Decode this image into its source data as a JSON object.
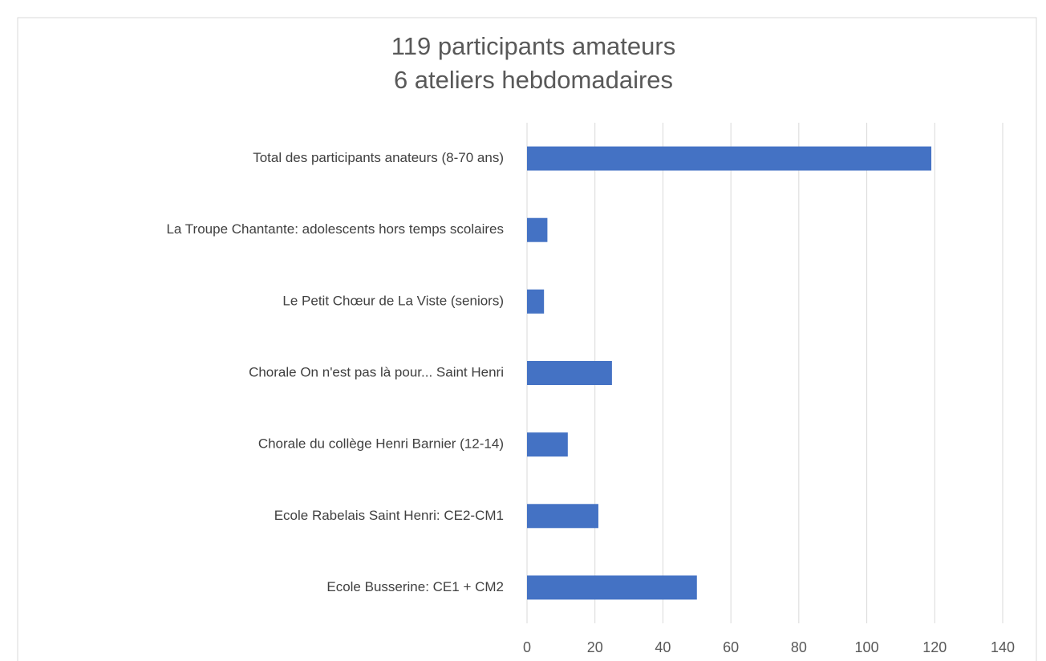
{
  "chart_data": {
    "type": "bar",
    "orientation": "horizontal",
    "title": "119 participants amateurs",
    "subtitle": "6 ateliers hebdomadaires",
    "categories": [
      "Total des participants anateurs (8-70 ans)",
      "La Troupe Chantante: adolescents hors temps scolaires",
      "Le Petit Chœur de La Viste (seniors)",
      "Chorale On n'est pas là pour... Saint Henri",
      "Chorale du collège Henri Barnier (12-14)",
      "Ecole Rabelais Saint Henri: CE2-CM1",
      "Ecole Busserine: CE1 + CM2"
    ],
    "values": [
      119,
      6,
      5,
      25,
      12,
      21,
      50
    ],
    "color": "#4472c4",
    "xlim": [
      0,
      140
    ],
    "xticks": [
      0,
      20,
      40,
      60,
      80,
      100,
      120,
      140
    ],
    "grid": true
  }
}
